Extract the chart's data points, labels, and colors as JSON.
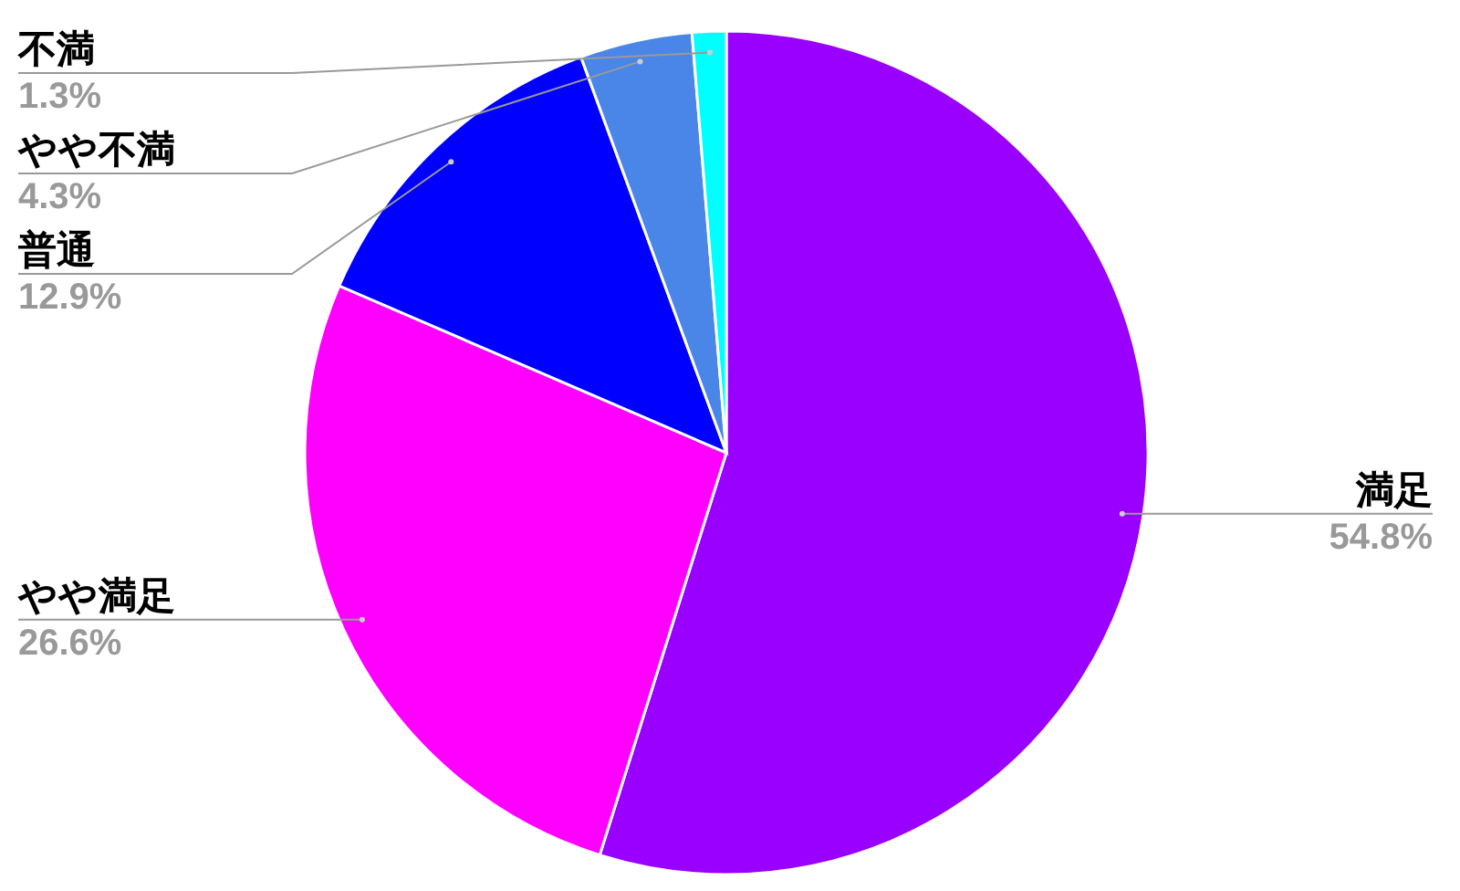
{
  "chart_data": {
    "type": "pie",
    "categories": [
      "満足",
      "やや満足",
      "普通",
      "やや不満",
      "不満"
    ],
    "values": [
      54.8,
      26.6,
      12.9,
      4.3,
      1.3
    ],
    "value_labels": [
      "54.8%",
      "26.6%",
      "12.9%",
      "4.3%",
      "1.3%"
    ],
    "colors": [
      "#9900ff",
      "#ff00ff",
      "#0000ff",
      "#4a86e8",
      "#00ffff"
    ]
  }
}
